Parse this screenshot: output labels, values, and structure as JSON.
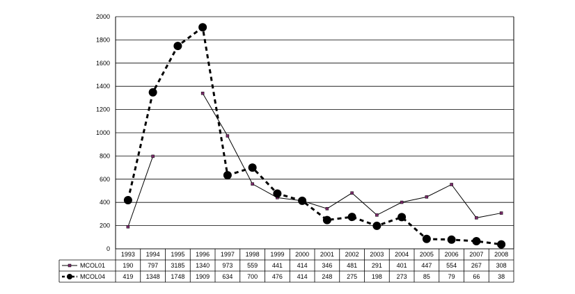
{
  "chart_data": {
    "type": "line",
    "title": "",
    "xlabel": "",
    "ylabel": "",
    "ylim": [
      0,
      2000
    ],
    "yticks": [
      0,
      200,
      400,
      600,
      800,
      1000,
      1200,
      1400,
      1600,
      1800,
      2000
    ],
    "grid": true,
    "legend": "data-table",
    "categories": [
      "1993",
      "1994",
      "1995",
      "1996",
      "1997",
      "1998",
      "1999",
      "2000",
      "2001",
      "2002",
      "2003",
      "2004",
      "2005",
      "2006",
      "2007",
      "2008"
    ],
    "series": [
      {
        "name": "MCOL01",
        "style": "solid",
        "color": "#000000",
        "marker_color": "#7a2a6a",
        "values": [
          190,
          797,
          3185,
          1340,
          973,
          559,
          441,
          414,
          346,
          481,
          291,
          401,
          447,
          554,
          267,
          308
        ],
        "line_breaks_after": [
          1
        ]
      },
      {
        "name": "MCOL04",
        "style": "dashed",
        "color": "#000000",
        "marker_color": "#000000",
        "values": [
          419,
          1348,
          1748,
          1909,
          634,
          700,
          476,
          414,
          248,
          275,
          198,
          273,
          85,
          79,
          66,
          38
        ],
        "line_breaks_after": []
      }
    ]
  }
}
